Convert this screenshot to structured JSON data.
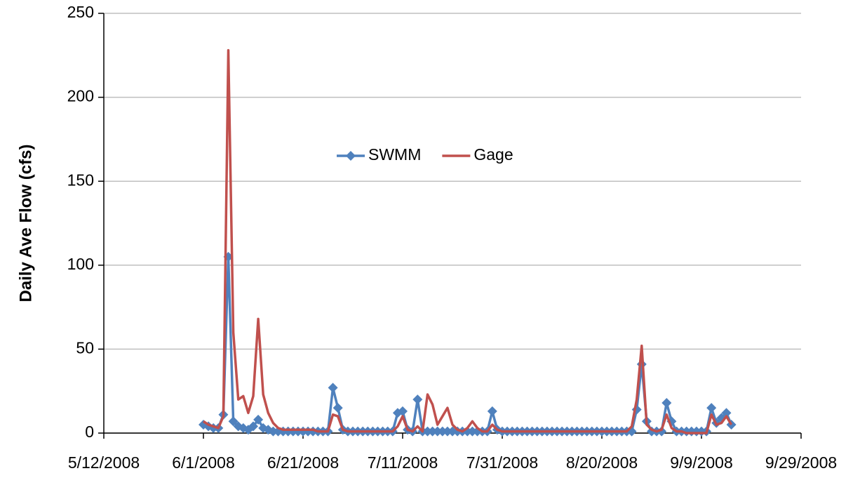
{
  "chart_data": {
    "type": "line",
    "y_label": "Daily Ave Flow (cfs)",
    "x": [
      "2008-06-01",
      "2008-06-02",
      "2008-06-03",
      "2008-06-04",
      "2008-06-05",
      "2008-06-06",
      "2008-06-07",
      "2008-06-08",
      "2008-06-09",
      "2008-06-10",
      "2008-06-11",
      "2008-06-12",
      "2008-06-13",
      "2008-06-14",
      "2008-06-15",
      "2008-06-16",
      "2008-06-17",
      "2008-06-18",
      "2008-06-19",
      "2008-06-20",
      "2008-06-21",
      "2008-06-22",
      "2008-06-23",
      "2008-06-24",
      "2008-06-25",
      "2008-06-26",
      "2008-06-27",
      "2008-06-28",
      "2008-06-29",
      "2008-06-30",
      "2008-07-01",
      "2008-07-02",
      "2008-07-03",
      "2008-07-04",
      "2008-07-05",
      "2008-07-06",
      "2008-07-07",
      "2008-07-08",
      "2008-07-09",
      "2008-07-10",
      "2008-07-11",
      "2008-07-12",
      "2008-07-13",
      "2008-07-14",
      "2008-07-15",
      "2008-07-16",
      "2008-07-17",
      "2008-07-18",
      "2008-07-19",
      "2008-07-20",
      "2008-07-21",
      "2008-07-22",
      "2008-07-23",
      "2008-07-24",
      "2008-07-25",
      "2008-07-26",
      "2008-07-27",
      "2008-07-28",
      "2008-07-29",
      "2008-07-30",
      "2008-07-31",
      "2008-08-01",
      "2008-08-02",
      "2008-08-03",
      "2008-08-04",
      "2008-08-05",
      "2008-08-06",
      "2008-08-07",
      "2008-08-08",
      "2008-08-09",
      "2008-08-10",
      "2008-08-11",
      "2008-08-12",
      "2008-08-13",
      "2008-08-14",
      "2008-08-15",
      "2008-08-16",
      "2008-08-17",
      "2008-08-18",
      "2008-08-19",
      "2008-08-20",
      "2008-08-21",
      "2008-08-22",
      "2008-08-23",
      "2008-08-24",
      "2008-08-25",
      "2008-08-26",
      "2008-08-27",
      "2008-08-28",
      "2008-08-29",
      "2008-08-30",
      "2008-08-31",
      "2008-09-01",
      "2008-09-02",
      "2008-09-03",
      "2008-09-04",
      "2008-09-05",
      "2008-09-06",
      "2008-09-07",
      "2008-09-08",
      "2008-09-09",
      "2008-09-10",
      "2008-09-11",
      "2008-09-12",
      "2008-09-13",
      "2008-09-14",
      "2008-09-15"
    ],
    "series": [
      {
        "name": "SWMM",
        "color": "#4f81bd",
        "marker": "diamond",
        "values": [
          5,
          4,
          3,
          3,
          11,
          105,
          7,
          4,
          3,
          2,
          4,
          8,
          3,
          2,
          1,
          1,
          1,
          1,
          1,
          1,
          1,
          1,
          1,
          1,
          1,
          1,
          27,
          15,
          2,
          1,
          1,
          1,
          1,
          1,
          1,
          1,
          1,
          1,
          1,
          12,
          13,
          2,
          1,
          20,
          1,
          1,
          1,
          1,
          1,
          1,
          1,
          1,
          1,
          1,
          1,
          1,
          1,
          1,
          13,
          2,
          1,
          1,
          1,
          1,
          1,
          1,
          1,
          1,
          1,
          1,
          1,
          1,
          1,
          1,
          1,
          1,
          1,
          1,
          1,
          1,
          1,
          1,
          1,
          1,
          1,
          1,
          1,
          14,
          41,
          7,
          1,
          1,
          1,
          18,
          7,
          1,
          1,
          1,
          1,
          1,
          1,
          1,
          15,
          6,
          9,
          12,
          5
        ]
      },
      {
        "name": "Gage",
        "color": "#c0504d",
        "marker": "none",
        "values": [
          7,
          5,
          4,
          3,
          10,
          228,
          60,
          20,
          22,
          12,
          22,
          68,
          23,
          12,
          6,
          3,
          2,
          2,
          2,
          2,
          2,
          2,
          2,
          1,
          1,
          1,
          11,
          10,
          2,
          1,
          1,
          1,
          1,
          1,
          1,
          1,
          1,
          1,
          1,
          4,
          10,
          2,
          1,
          4,
          1,
          23,
          17,
          5,
          10,
          15,
          5,
          2,
          1,
          3,
          7,
          3,
          1,
          1,
          5,
          2,
          1,
          1,
          1,
          1,
          1,
          1,
          1,
          1,
          1,
          1,
          1,
          1,
          1,
          1,
          1,
          1,
          1,
          1,
          1,
          1,
          1,
          1,
          1,
          1,
          1,
          1,
          4,
          20,
          52,
          5,
          2,
          1,
          2,
          11,
          3,
          1,
          1,
          0,
          0,
          0,
          0,
          0,
          11,
          5,
          6,
          10,
          5
        ]
      }
    ],
    "xlim": [
      "2008-05-12",
      "2008-09-29"
    ],
    "xticks": [
      {
        "value": "2008-05-12",
        "label": "5/12/2008"
      },
      {
        "value": "2008-06-01",
        "label": "6/1/2008"
      },
      {
        "value": "2008-06-21",
        "label": "6/21/2008"
      },
      {
        "value": "2008-07-11",
        "label": "7/11/2008"
      },
      {
        "value": "2008-07-31",
        "label": "7/31/2008"
      },
      {
        "value": "2008-08-20",
        "label": "8/20/2008"
      },
      {
        "value": "2008-09-09",
        "label": "9/9/2008"
      },
      {
        "value": "2008-09-29",
        "label": "9/29/2008"
      }
    ],
    "ylim": [
      0,
      250
    ],
    "yticks": [
      0,
      50,
      100,
      150,
      200,
      250
    ],
    "grid": true,
    "legend": "upper center"
  }
}
